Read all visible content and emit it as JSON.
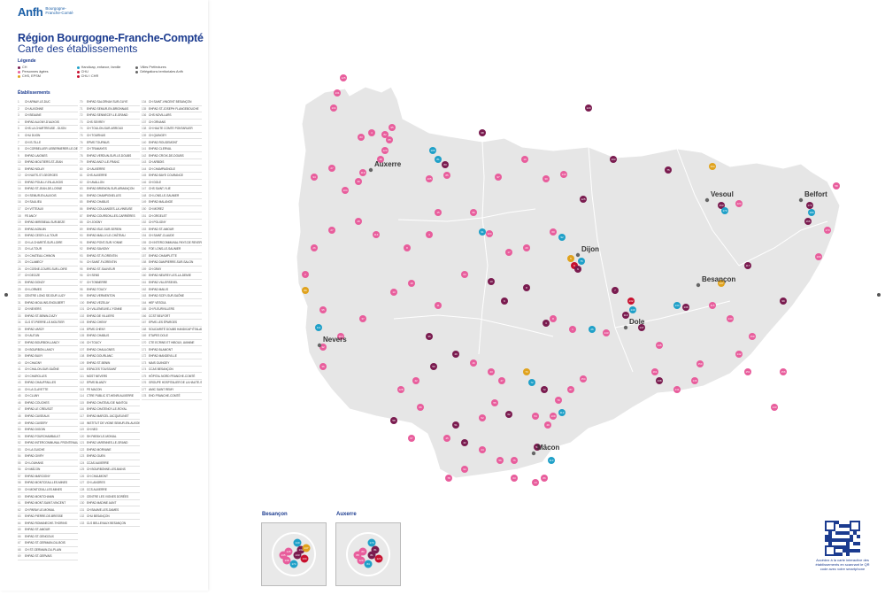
{
  "logo": {
    "main": "Anfh",
    "sub1": "Bourgogne-",
    "sub2": "Franche-Comté"
  },
  "header": {
    "title": "Région Bourgogne-Franche-Compté",
    "subtitle": "Carte des établissements"
  },
  "legend": {
    "title": "Légende",
    "items": [
      {
        "label": "CH",
        "color": "#7a1b4f"
      },
      {
        "label": "Handicap, enfance, famille",
        "color": "#1fa0c8"
      },
      {
        "label": "Villes Préfectures",
        "color": "#666666"
      },
      {
        "label": "Personnes âgées",
        "color": "#e85d9c"
      },
      {
        "label": "CHU",
        "color": "#c8102e"
      },
      {
        "label": "Délégations territoriales Anfh",
        "color": "#666666"
      },
      {
        "label": "CHS, EPSM",
        "color": "#e0a21c"
      },
      {
        "label": "CHU / CHR",
        "color": "#c8102e"
      }
    ]
  },
  "establishments": {
    "title": "Établissements",
    "columns": [
      [
        {
          "n": "1",
          "name": "CH ARNAY-LE-DUC"
        },
        {
          "n": "2",
          "name": "CH AUXONNE"
        },
        {
          "n": "3",
          "name": "CH BEAUNE"
        },
        {
          "n": "4",
          "name": "EHPAD ALIGNY-D'AUXOIS"
        },
        {
          "n": "5",
          "name": "CHS LA CHARTREUSE - DIJON"
        },
        {
          "n": "6",
          "name": "CHU DIJON"
        },
        {
          "n": "7",
          "name": "CH IS-TILLE"
        },
        {
          "n": "8",
          "name": "CH CORBELLIER LIEBERMERER-LE-DEURRE"
        },
        {
          "n": "9",
          "name": "EHPAD LAIGNES"
        },
        {
          "n": "10",
          "name": "EHPAD MOUTIERS-ST-JEAN"
        },
        {
          "n": "11",
          "name": "EHPAD NOLAY"
        },
        {
          "n": "12",
          "name": "CH NUITS-ST-GEORGES"
        },
        {
          "n": "13",
          "name": "EHPAD POUILLY-EN-AUXOIS"
        },
        {
          "n": "14",
          "name": "EHPAD ST-JEAN-DE-LOSNE"
        },
        {
          "n": "15",
          "name": "CH SEMUR-EN-AUXOIS"
        },
        {
          "n": "16",
          "name": "CH SAULIEU"
        },
        {
          "n": "17",
          "name": "CH VITTEAUX"
        },
        {
          "n": "18",
          "name": "FE ANCY"
        },
        {
          "n": "19",
          "name": "EHPAD MIREBEAU-SUR-BEZE"
        },
        {
          "n": "20",
          "name": "EHPAD AGNUIN"
        },
        {
          "n": "21",
          "name": "EHPAD CESSY-LA-TOUR"
        },
        {
          "n": "22",
          "name": "CH LA CHARITÉ-SUR-LOIRE"
        },
        {
          "n": "23",
          "name": "CH LA TOUR"
        },
        {
          "n": "24",
          "name": "CH CHATEAU-CHINON"
        },
        {
          "n": "25",
          "name": "CH CLAMECY"
        },
        {
          "n": "26",
          "name": "CH COSNE-COURS-SUR-LOIRE"
        },
        {
          "n": "27",
          "name": "CH DECIZE"
        },
        {
          "n": "28",
          "name": "EHPAD DONZY"
        },
        {
          "n": "29",
          "name": "CH LORMES"
        },
        {
          "n": "30",
          "name": "CENTRE LONG SEJOUR LUZY"
        },
        {
          "n": "31",
          "name": "EHPAD MOULINS-ENGILBERT"
        },
        {
          "n": "32",
          "name": "CH NEVERS"
        },
        {
          "n": "33",
          "name": "EHPAD ST-BENIN-D'AZY"
        },
        {
          "n": "34",
          "name": "CLS ST-PIERRE-LE-MOUTIER"
        },
        {
          "n": "35",
          "name": "EHPAD VARZY"
        },
        {
          "n": "36",
          "name": "CH AUTUN"
        },
        {
          "n": "37",
          "name": "EHPAD BOURBON-LANCY"
        },
        {
          "n": "38",
          "name": "CH BOURBON-LANCY"
        },
        {
          "n": "39",
          "name": "EHPAD BUXY"
        },
        {
          "n": "40",
          "name": "CH CHAGNY"
        },
        {
          "n": "41",
          "name": "CH CHALON-SUR-SAÔNE"
        },
        {
          "n": "42",
          "name": "CH CHAROLLES"
        },
        {
          "n": "43",
          "name": "EHPAD CHAUFFAILLES"
        },
        {
          "n": "44",
          "name": "CH LA CLAYETTE"
        },
        {
          "n": "45",
          "name": "CH CLUNY"
        },
        {
          "n": "46",
          "name": "EHPAD COUCHES"
        },
        {
          "n": "47",
          "name": "EHPAD LE CREUSOT"
        },
        {
          "n": "48",
          "name": "EHPAD CUISEAUX"
        },
        {
          "n": "49",
          "name": "EHPAD CUISERY"
        },
        {
          "n": "50",
          "name": "EHPAD DIGOIN"
        },
        {
          "n": "51",
          "name": "EHPAD FOURCHAMBAULT"
        },
        {
          "n": "52",
          "name": "EHPAD INTERCOMMUNAL FRONTENAUD"
        },
        {
          "n": "53",
          "name": "CH LA GUICHE"
        },
        {
          "n": "54",
          "name": "EHPAD GIVRY"
        },
        {
          "n": "55",
          "name": "CH LOUHANS"
        },
        {
          "n": "56",
          "name": "CH MÂCON"
        },
        {
          "n": "57",
          "name": "EHPAD MARCIGNY"
        },
        {
          "n": "58",
          "name": "EHPAD MONTCEAU-LES-MINES"
        },
        {
          "n": "59",
          "name": "CH MONTCEAU-LES-MINES"
        },
        {
          "n": "60",
          "name": "EHPAD MONTCHANIN"
        },
        {
          "n": "61",
          "name": "EHPAD MONT-SAINT-VINCENT"
        },
        {
          "n": "62",
          "name": "CH PARAY-LE-MONIAL"
        },
        {
          "n": "63",
          "name": "EHPAD PIERRE-DE-BRESSE"
        },
        {
          "n": "64",
          "name": "EHPAD ROMANECHE-THORINS"
        },
        {
          "n": "65",
          "name": "EHPAD ST-AMOUR"
        },
        {
          "n": "66",
          "name": "EHPAD ST-GENGOUX"
        },
        {
          "n": "67",
          "name": "EHPAD ST-GERMAIN-DU-BOIS"
        },
        {
          "n": "68",
          "name": "CH ST-GERMAIN-DU-PLAIN"
        },
        {
          "n": "69",
          "name": "EHPAD ST-GERVAIS"
        }
      ],
      [
        {
          "n": "70",
          "name": "EHPAD SALORNAY-SUR-GUYE"
        },
        {
          "n": "71",
          "name": "EHPAD SEMUR-EN-BRIONNAIS"
        },
        {
          "n": "72",
          "name": "EHPAD SENNECEY-LE-GRAND"
        },
        {
          "n": "73",
          "name": "CHS SEVREY"
        },
        {
          "n": "74",
          "name": "CH TOULON-SUR-ARROUX"
        },
        {
          "n": "75",
          "name": "CH TOURNUS"
        },
        {
          "n": "76",
          "name": "EPMS TOURNUS"
        },
        {
          "n": "77",
          "name": "CH TRAMAYES"
        },
        {
          "n": "78",
          "name": "EHPAD VERDUN-SUR-LE-DOUBS"
        },
        {
          "n": "79",
          "name": "EHPAD ANCY-LE-FRANC"
        },
        {
          "n": "80",
          "name": "CH AUXERRE"
        },
        {
          "n": "81",
          "name": "CHS AUXERRE"
        },
        {
          "n": "82",
          "name": "CH AVALLON"
        },
        {
          "n": "83",
          "name": "EHPAD BRIENON-SUR-ARMANÇON"
        },
        {
          "n": "84",
          "name": "EHPAD CHAMPIGNELLES"
        },
        {
          "n": "85",
          "name": "EHPAD CHABLIS"
        },
        {
          "n": "86",
          "name": "EHPAD COULANGES-LA-VINEUSE"
        },
        {
          "n": "87",
          "name": "EHPAD COURSON-LES-CARRIÈRES"
        },
        {
          "n": "88",
          "name": "CH JOIGNY"
        },
        {
          "n": "89",
          "name": "EHPAD ISLE-SUR-SEREIN"
        },
        {
          "n": "90",
          "name": "EHPAD MAILLY-LE-CHÂTEAU"
        },
        {
          "n": "91",
          "name": "EHPAD PONT-SUR-YONNE"
        },
        {
          "n": "92",
          "name": "EHPAD SAVIGNY"
        },
        {
          "n": "93",
          "name": "EHPAD ST-FLORENTIN"
        },
        {
          "n": "94",
          "name": "CH SAINT-FLORENTIN"
        },
        {
          "n": "95",
          "name": "EHPAD ST-SAUVEUR"
        },
        {
          "n": "96",
          "name": "CH SENS"
        },
        {
          "n": "97",
          "name": "CH TONNERRE"
        },
        {
          "n": "98",
          "name": "EHPAD TOUCY"
        },
        {
          "n": "99",
          "name": "EHPAD VERMENTON"
        },
        {
          "n": "100",
          "name": "EHPAD VEZELAY"
        },
        {
          "n": "101",
          "name": "CH VILLENEUVE-L'YONNE"
        },
        {
          "n": "102",
          "name": "EHPAD DE VILLIERS"
        },
        {
          "n": "103",
          "name": "EHPAD CHENY"
        },
        {
          "n": "104",
          "name": "EPMS CHENY"
        },
        {
          "n": "105",
          "name": "EHPAD CHABLIS"
        },
        {
          "n": "106",
          "name": "CH TOUCY"
        },
        {
          "n": "107",
          "name": "EHPAD CHAULGNES"
        },
        {
          "n": "108",
          "name": "EHPAD DOURLANC"
        },
        {
          "n": "109",
          "name": "EHPAD ST-BENIN"
        },
        {
          "n": "110",
          "name": "ESPACES TOUSSAINT"
        },
        {
          "n": "111",
          "name": "MGST NEVERS"
        },
        {
          "n": "112",
          "name": "EPMS BLANZY"
        },
        {
          "n": "113",
          "name": "FE MACON"
        },
        {
          "n": "114",
          "name": "CTRE PUBLIC ST-HENRI AUXERRE"
        },
        {
          "n": "115",
          "name": "EHPAD CHATEAU DE NANTOU"
        },
        {
          "n": "116",
          "name": "EHPAD CHATENOY-LE-ROYAL"
        },
        {
          "n": "117",
          "name": "EHPAD MARCEL JACQUELINET"
        },
        {
          "n": "118",
          "name": "INSTITUT DE VIGNE SEMUR-EN-AUXOIS"
        },
        {
          "n": "119",
          "name": "CH NEO"
        },
        {
          "n": "120",
          "name": "SH PARAY-LE-MONIAL"
        },
        {
          "n": "121",
          "name": "EHPAD VARENNES-LE-GRAND"
        },
        {
          "n": "122",
          "name": "EHPAD MORVANE"
        },
        {
          "n": "123",
          "name": "EHPAD GUEN"
        },
        {
          "n": "124",
          "name": "CCAS AUXERRE"
        },
        {
          "n": "125",
          "name": "CH BOURBONNE-LES-BAINS"
        },
        {
          "n": "126",
          "name": "CH CHAUMONT"
        },
        {
          "n": "127",
          "name": "CH LANGRES"
        },
        {
          "n": "128",
          "name": "CCS AUXERRE"
        },
        {
          "n": "129",
          "name": "CENTRE LES VIGNES DORÉES"
        },
        {
          "n": "130",
          "name": "EHPAD MADINE AUNT"
        },
        {
          "n": "131",
          "name": "CH BAUME-LES-DAMES"
        },
        {
          "n": "132",
          "name": "CHU BESANÇON"
        },
        {
          "n": "133",
          "name": "CLS BELLEVAUX BESANÇON"
        }
      ],
      [
        {
          "n": "134",
          "name": "CH SAINT-VINCENT BESANÇON"
        },
        {
          "n": "135",
          "name": "EHPAD ST-JOSEPH FLANGEBOUCHE"
        },
        {
          "n": "136",
          "name": "CHS NOVILLARS"
        },
        {
          "n": "137",
          "name": "CH ORNANS"
        },
        {
          "n": "138",
          "name": "CH HAUTE COMTE PONTARLIER"
        },
        {
          "n": "139",
          "name": "CH QUINGEY"
        },
        {
          "n": "140",
          "name": "EHPAD ROUGEMONT"
        },
        {
          "n": "141",
          "name": "EHPAD CLERVAL"
        },
        {
          "n": "142",
          "name": "EHPAD CROIX-DE-DOUBS"
        },
        {
          "n": "143",
          "name": "CH ARBOIS"
        },
        {
          "n": "144",
          "name": "CH CHAMPAGNOLE"
        },
        {
          "n": "145",
          "name": "EHPAD BAYE COURANCE"
        },
        {
          "n": "146",
          "name": "CH DOLE"
        },
        {
          "n": "147",
          "name": "CHS SAINT-YLIE"
        },
        {
          "n": "148",
          "name": "CH LONS-LE-SAUNIER"
        },
        {
          "n": "149",
          "name": "EHPAD MALANGE"
        },
        {
          "n": "150",
          "name": "CH MOREZ"
        },
        {
          "n": "151",
          "name": "CH ORGELET"
        },
        {
          "n": "152",
          "name": "CH POLIGNY"
        },
        {
          "n": "153",
          "name": "EHPAD ST-AMOUR"
        },
        {
          "n": "154",
          "name": "CH SAINT-CLAUDE"
        },
        {
          "n": "155",
          "name": "CH INTERCOMMUNAL PAYS DE REVERMONT"
        },
        {
          "n": "156",
          "name": "FOE LONS-LE-SAUNIER"
        },
        {
          "n": "157",
          "name": "EHPAD CHAMPLITTE"
        },
        {
          "n": "158",
          "name": "EHPAD DAMPIERRE-SUR-SALON"
        },
        {
          "n": "159",
          "name": "CH GRAY"
        },
        {
          "n": "160",
          "name": "EHPAD NEUREY-LES-LA-DEMIE"
        },
        {
          "n": "161",
          "name": "EHPAD VILLERSEXEL"
        },
        {
          "n": "162",
          "name": "EHPAD MAILIS"
        },
        {
          "n": "163",
          "name": "EHPAD SCEY-SUR-SAÔNE"
        },
        {
          "n": "164",
          "name": "HEF VESOUL"
        },
        {
          "n": "165",
          "name": "CH FLEURVILLERS"
        },
        {
          "n": "166",
          "name": "CCST BELFORT"
        },
        {
          "n": "167",
          "name": "EPMS LES ÉPARGES"
        },
        {
          "n": "168",
          "name": "SOLIDARITÉ DOUBS HANDICAP ÉTALANS"
        },
        {
          "n": "169",
          "name": "ETAPES DOLE"
        },
        {
          "n": "170",
          "name": "CTE ECRINS ET HIBOUX, AVANNE"
        },
        {
          "n": "171",
          "name": "EHPAD BLAMONT"
        },
        {
          "n": "172",
          "name": "EHPAD MANDEVILLE"
        },
        {
          "n": "173",
          "name": "MAIS GUINGEY"
        },
        {
          "n": "174",
          "name": "CCAS BESANÇON"
        },
        {
          "n": "175",
          "name": "HÔPITAL NORD FRANCHE-COMTÉ"
        },
        {
          "n": "176",
          "name": "GROUPE HOSPITALIER DE LA HAUTE-SAÔNE"
        },
        {
          "n": "177",
          "name": "AMIC SAINT REMY"
        },
        {
          "n": "178",
          "name": "EHD FRANCHE-COMTÉ"
        }
      ]
    ]
  },
  "map": {
    "cities": [
      {
        "name": "Auxerre"
      },
      {
        "name": "Dijon"
      },
      {
        "name": "Nevers"
      },
      {
        "name": "Besançon"
      },
      {
        "name": "Vesoul"
      },
      {
        "name": "Belfort"
      },
      {
        "name": "Dole"
      },
      {
        "name": "Mâcon"
      }
    ],
    "marker_colors": {
      "ch": "#7a1b4f",
      "pa": "#e85d9c",
      "handicap": "#1fa0c8",
      "chs": "#e0a21c",
      "chu": "#c8102e"
    },
    "region_fill": "#e6e6e6",
    "region_stroke": "#ffffff"
  },
  "insets": [
    {
      "title": "Besançon",
      "markers": [
        "140",
        "145",
        "133",
        "134",
        "138",
        "174",
        "132",
        "135",
        "137"
      ]
    },
    {
      "title": "Auxerre",
      "markers": [
        "170",
        "80",
        "81",
        "124",
        "120",
        "84",
        "81",
        "88"
      ]
    }
  ],
  "qr": {
    "caption": "Accédez à la carte interactive des établissements en scannant le QR code avec votre smartphone"
  }
}
